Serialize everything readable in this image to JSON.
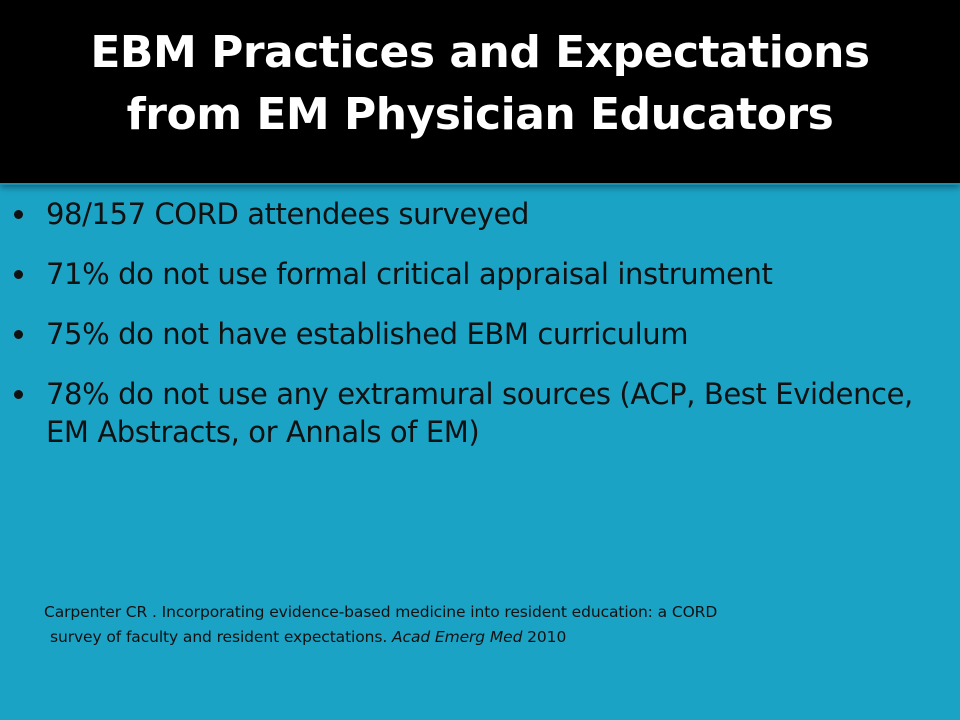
{
  "slide": {
    "title_line1": "EBM Practices and Expectations",
    "title_line2": "from EM Physician Educators",
    "bullets": [
      "98/157 CORD attendees surveyed",
      "71%  do not use formal critical appraisal instrument",
      "75% do not have established EBM curriculum",
      "78% do not use any extramural sources (ACP, Best Evidence, EM Abstracts, or Annals of EM)"
    ],
    "citation": {
      "line1": "Carpenter CR . Incorporating evidence-based medicine into resident education: a CORD",
      "line2_text": "survey of faculty and resident expectations. ",
      "journal": "Acad Emerg Med",
      "year": "  2010"
    }
  },
  "colors": {
    "background": "#1ba3c6",
    "title_bar": "#000000",
    "title_text": "#ffffff",
    "body_text": "#111111"
  }
}
